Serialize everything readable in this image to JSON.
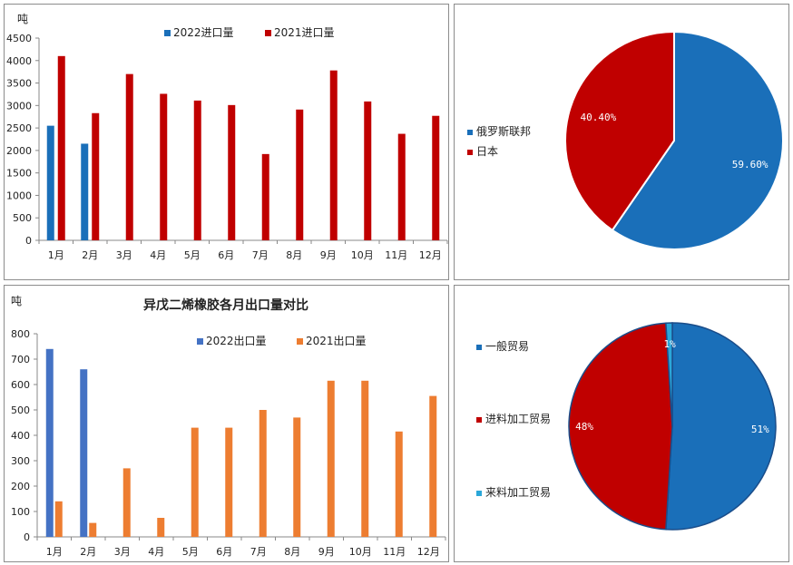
{
  "chart_data": [
    {
      "type": "bar",
      "title": "",
      "ylabel": "吨",
      "ylim": [
        0,
        4500
      ],
      "yticks": [
        0,
        500,
        1000,
        1500,
        2000,
        2500,
        3000,
        3500,
        4000,
        4500
      ],
      "categories": [
        "1月",
        "2月",
        "3月",
        "4月",
        "5月",
        "6月",
        "7月",
        "8月",
        "9月",
        "10月",
        "11月",
        "12月"
      ],
      "series": [
        {
          "name": "2022进口量",
          "color": "#1a6fb9",
          "values": [
            2550,
            2150,
            null,
            null,
            null,
            null,
            null,
            null,
            null,
            null,
            null,
            null
          ]
        },
        {
          "name": "2021进口量",
          "color": "#c00000",
          "values": [
            4100,
            2830,
            3700,
            3260,
            3110,
            3010,
            1920,
            2910,
            3780,
            3090,
            2370,
            2770
          ]
        }
      ],
      "legend": "top"
    },
    {
      "type": "pie",
      "labels": [
        "俄罗斯联邦",
        "日本"
      ],
      "values": [
        59.6,
        40.4
      ],
      "value_labels": [
        "59.60%",
        "40.40%"
      ],
      "colors": [
        "#1a6fb9",
        "#c00000"
      ],
      "legend": "left"
    },
    {
      "type": "bar",
      "title": "异戊二烯橡胶各月出口量对比",
      "ylabel": "吨",
      "ylim": [
        0,
        800
      ],
      "yticks": [
        0,
        100,
        200,
        300,
        400,
        500,
        600,
        700,
        800
      ],
      "categories": [
        "1月",
        "2月",
        "3月",
        "4月",
        "5月",
        "6月",
        "7月",
        "8月",
        "9月",
        "10月",
        "11月",
        "12月"
      ],
      "series": [
        {
          "name": "2022出口量",
          "color": "#4472c4",
          "values": [
            740,
            660,
            null,
            null,
            null,
            null,
            null,
            null,
            null,
            null,
            null,
            null
          ]
        },
        {
          "name": "2021出口量",
          "color": "#ed7d31",
          "values": [
            140,
            55,
            270,
            75,
            430,
            430,
            500,
            470,
            615,
            615,
            415,
            555
          ]
        }
      ],
      "legend": "top"
    },
    {
      "type": "pie",
      "labels": [
        "一般贸易",
        "进料加工贸易",
        "来料加工贸易"
      ],
      "values": [
        51,
        48,
        1
      ],
      "value_labels": [
        "51%",
        "48%",
        "1%"
      ],
      "colors": [
        "#1a6fb9",
        "#c00000",
        "#2aa7d9"
      ],
      "legend": "left"
    }
  ]
}
